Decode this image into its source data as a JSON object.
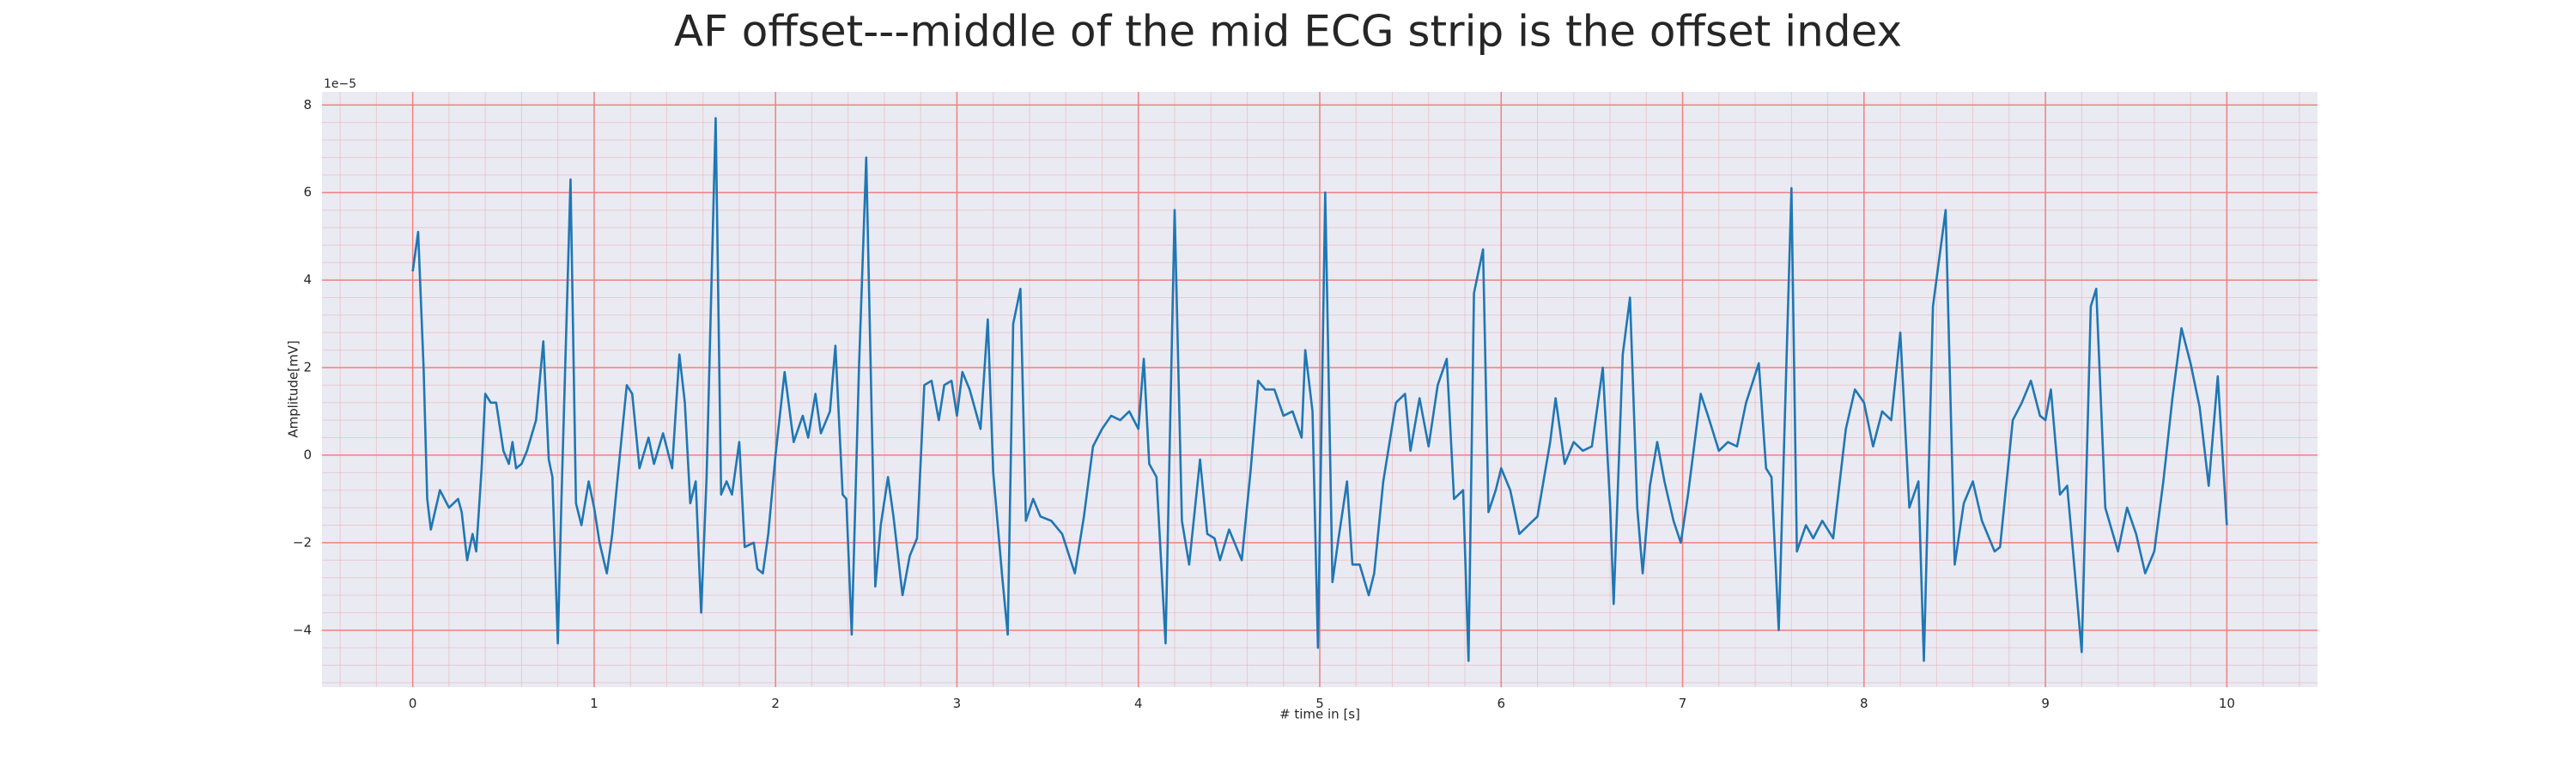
{
  "chart_data": {
    "type": "line",
    "title": "AF offset---middle of the mid ECG strip is the offset index",
    "x_label": "# time in [s]",
    "y_label": "Amplitude[mV]",
    "y_offset_label": "1e−5",
    "color": "#1f77b4",
    "background": "#eaeaf2",
    "grid": true,
    "grid_color": "#f08080",
    "minor_grid": true,
    "xlim": [
      -0.5,
      10.5
    ],
    "ylim": [
      -5.3,
      8.3
    ],
    "xticks": [
      0,
      1,
      2,
      3,
      4,
      5,
      6,
      7,
      8,
      9,
      10
    ],
    "yticks": [
      {
        "value": -4,
        "label": "−4"
      },
      {
        "value": -2,
        "label": "−2"
      },
      0,
      2,
      4,
      6,
      8
    ],
    "x": [
      0,
      0.03,
      0.06,
      0.08,
      0.1,
      0.15,
      0.2,
      0.25,
      0.27,
      0.3,
      0.33,
      0.35,
      0.38,
      0.4,
      0.43,
      0.46,
      0.5,
      0.53,
      0.55,
      0.57,
      0.6,
      0.63,
      0.68,
      0.72,
      0.75,
      0.77,
      0.8,
      0.82,
      0.87,
      0.9,
      0.93,
      0.97,
      1.0,
      1.03,
      1.07,
      1.1,
      1.13,
      1.18,
      1.21,
      1.25,
      1.3,
      1.33,
      1.38,
      1.43,
      1.47,
      1.5,
      1.53,
      1.56,
      1.59,
      1.62,
      1.67,
      1.7,
      1.73,
      1.76,
      1.8,
      1.83,
      1.88,
      1.9,
      1.93,
      1.96,
      2.0,
      2.05,
      2.1,
      2.15,
      2.18,
      2.22,
      2.25,
      2.3,
      2.33,
      2.37,
      2.39,
      2.42,
      2.46,
      2.5,
      2.55,
      2.58,
      2.62,
      2.65,
      2.7,
      2.74,
      2.78,
      2.82,
      2.86,
      2.9,
      2.93,
      2.97,
      3.0,
      3.03,
      3.07,
      3.13,
      3.17,
      3.2,
      3.25,
      3.28,
      3.31,
      3.35,
      3.38,
      3.42,
      3.46,
      3.52,
      3.58,
      3.65,
      3.7,
      3.75,
      3.8,
      3.85,
      3.9,
      3.95,
      4.0,
      4.03,
      4.06,
      4.1,
      4.15,
      4.2,
      4.24,
      4.28,
      4.34,
      4.38,
      4.42,
      4.45,
      4.5,
      4.57,
      4.62,
      4.66,
      4.7,
      4.75,
      4.8,
      4.85,
      4.9,
      4.92,
      4.96,
      4.99,
      5.03,
      5.07,
      5.1,
      5.15,
      5.18,
      5.22,
      5.27,
      5.3,
      5.35,
      5.42,
      5.47,
      5.5,
      5.55,
      5.6,
      5.65,
      5.7,
      5.74,
      5.79,
      5.82,
      5.85,
      5.9,
      5.93,
      5.97,
      6.0,
      6.05,
      6.1,
      6.15,
      6.2,
      6.27,
      6.3,
      6.35,
      6.4,
      6.45,
      6.5,
      6.56,
      6.6,
      6.62,
      6.67,
      6.71,
      6.75,
      6.78,
      6.82,
      6.86,
      6.9,
      6.95,
      6.99,
      7.03,
      7.1,
      7.14,
      7.2,
      7.25,
      7.3,
      7.35,
      7.42,
      7.46,
      7.49,
      7.53,
      7.6,
      7.63,
      7.68,
      7.72,
      7.77,
      7.83,
      7.9,
      7.95,
      8.0,
      8.05,
      8.1,
      8.15,
      8.2,
      8.25,
      8.3,
      8.33,
      8.38,
      8.45,
      8.5,
      8.55,
      8.6,
      8.65,
      8.72,
      8.75,
      8.82,
      8.87,
      8.92,
      8.97,
      9.0,
      9.03,
      9.08,
      9.12,
      9.15,
      9.2,
      9.25,
      9.28,
      9.33,
      9.4,
      9.45,
      9.5,
      9.55,
      9.6,
      9.65,
      9.7,
      9.75,
      9.8,
      9.85,
      9.9,
      9.95,
      10.0
    ],
    "values": [
      4.2,
      5.1,
      2.0,
      -1.0,
      -1.7,
      -0.8,
      -1.2,
      -1.0,
      -1.3,
      -2.4,
      -1.8,
      -2.2,
      -0.3,
      1.4,
      1.2,
      1.2,
      0.1,
      -0.2,
      0.3,
      -0.3,
      -0.2,
      0.1,
      0.8,
      2.6,
      -0.1,
      -0.5,
      -4.3,
      -1.0,
      6.3,
      -1.1,
      -1.6,
      -0.6,
      -1.2,
      -2.0,
      -2.7,
      -1.8,
      -0.5,
      1.6,
      1.4,
      -0.3,
      0.4,
      -0.2,
      0.5,
      -0.3,
      2.3,
      1.2,
      -1.1,
      -0.6,
      -3.6,
      -0.5,
      7.7,
      -0.9,
      -0.6,
      -0.9,
      0.3,
      -2.1,
      -2.0,
      -2.6,
      -2.7,
      -1.8,
      0.0,
      1.9,
      0.3,
      0.9,
      0.4,
      1.4,
      0.5,
      1.0,
      2.5,
      -0.9,
      -1.0,
      -4.1,
      2.0,
      6.8,
      -3.0,
      -1.6,
      -0.5,
      -1.4,
      -3.2,
      -2.3,
      -1.9,
      1.6,
      1.7,
      0.8,
      1.6,
      1.7,
      0.9,
      1.9,
      1.5,
      0.6,
      3.1,
      -0.4,
      -2.8,
      -4.1,
      3.0,
      3.8,
      -1.5,
      -1.0,
      -1.4,
      -1.5,
      -1.8,
      -2.7,
      -1.4,
      0.2,
      0.6,
      0.9,
      0.8,
      1.0,
      0.6,
      2.2,
      -0.2,
      -0.5,
      -4.3,
      5.6,
      -1.5,
      -2.5,
      -0.1,
      -1.8,
      -1.9,
      -2.4,
      -1.7,
      -2.4,
      -0.3,
      1.7,
      1.5,
      1.5,
      0.9,
      1.0,
      0.4,
      2.4,
      1.0,
      -4.4,
      6.0,
      -2.9,
      -2.0,
      -0.6,
      -2.5,
      -2.5,
      -3.2,
      -2.7,
      -0.6,
      1.2,
      1.4,
      0.1,
      1.3,
      0.2,
      1.6,
      2.2,
      -1.0,
      -0.8,
      -4.7,
      3.7,
      4.7,
      -1.3,
      -0.8,
      -0.3,
      -0.8,
      -1.8,
      -1.6,
      -1.4,
      0.3,
      1.3,
      -0.2,
      0.3,
      0.1,
      0.2,
      2.0,
      -1.1,
      -3.4,
      2.3,
      3.6,
      -1.2,
      -2.7,
      -0.7,
      0.3,
      -0.6,
      -1.5,
      -2.0,
      -0.9,
      1.4,
      0.9,
      0.1,
      0.3,
      0.2,
      1.2,
      2.1,
      -0.3,
      -0.5,
      -4.0,
      6.1,
      -2.2,
      -1.6,
      -1.9,
      -1.5,
      -1.9,
      0.6,
      1.5,
      1.2,
      0.2,
      1.0,
      0.8,
      2.8,
      -1.2,
      -0.6,
      -4.7,
      3.4,
      5.6,
      -2.5,
      -1.1,
      -0.6,
      -1.5,
      -2.2,
      -2.1,
      0.8,
      1.2,
      1.7,
      0.9,
      0.8,
      1.5,
      -0.9,
      -0.7,
      -2.1,
      -4.5,
      3.4,
      3.8,
      -1.2,
      -2.2,
      -1.2,
      -1.8,
      -2.7,
      -2.2,
      -0.6,
      1.3,
      2.9,
      2.1,
      1.1,
      -0.7,
      1.8,
      -1.6
    ]
  }
}
